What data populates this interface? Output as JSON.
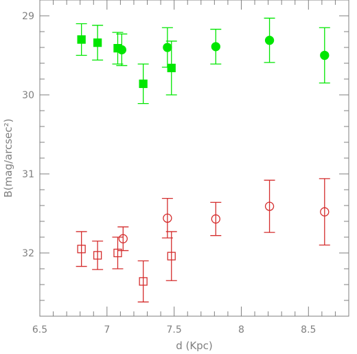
{
  "chart_data": {
    "type": "scatter",
    "title": "",
    "xlabel": "d (Kpc)",
    "ylabel": "B(mag/arcsec²)",
    "xlim": [
      6.5,
      8.8
    ],
    "ylim": [
      32.8,
      28.8
    ],
    "y_inverted": true,
    "x_ticks": [
      6.5,
      7,
      7.5,
      8,
      8.5
    ],
    "x_tick_labels": [
      "6.5",
      "7",
      "7.5",
      "8",
      "8.5"
    ],
    "y_ticks": [
      29,
      30,
      31,
      32
    ],
    "y_tick_labels": [
      "29",
      "30",
      "31",
      "32"
    ],
    "grid": false,
    "axis_color": "#7f7f7f",
    "series": [
      {
        "marker": "square",
        "filled": true,
        "color": "#00e600",
        "points": [
          {
            "x": 6.81,
            "y": 29.3,
            "err": 0.2
          },
          {
            "x": 6.93,
            "y": 29.34,
            "err": 0.22
          },
          {
            "x": 7.08,
            "y": 29.41,
            "err": 0.2
          },
          {
            "x": 7.27,
            "y": 29.86,
            "err": 0.25
          },
          {
            "x": 7.48,
            "y": 29.66,
            "err": 0.34
          }
        ]
      },
      {
        "marker": "circle",
        "filled": true,
        "color": "#00e600",
        "points": [
          {
            "x": 7.11,
            "y": 29.43,
            "err": 0.2
          },
          {
            "x": 7.45,
            "y": 29.4,
            "err": 0.25
          },
          {
            "x": 7.81,
            "y": 29.39,
            "err": 0.22
          },
          {
            "x": 8.21,
            "y": 29.31,
            "err": 0.28
          },
          {
            "x": 8.62,
            "y": 29.5,
            "err": 0.35
          }
        ]
      },
      {
        "marker": "square",
        "filled": false,
        "color": "#d42c2c",
        "points": [
          {
            "x": 6.81,
            "y": 31.95,
            "err": 0.22
          },
          {
            "x": 6.93,
            "y": 32.03,
            "err": 0.18
          },
          {
            "x": 7.08,
            "y": 32.0,
            "err": 0.2
          },
          {
            "x": 7.27,
            "y": 32.36,
            "err": 0.26
          },
          {
            "x": 7.48,
            "y": 32.04,
            "err": 0.31
          }
        ]
      },
      {
        "marker": "circle",
        "filled": false,
        "color": "#d42c2c",
        "points": [
          {
            "x": 7.12,
            "y": 31.82,
            "err": 0.15
          },
          {
            "x": 7.45,
            "y": 31.56,
            "err": 0.25
          },
          {
            "x": 7.81,
            "y": 31.57,
            "err": 0.21
          },
          {
            "x": 8.21,
            "y": 31.41,
            "err": 0.33
          },
          {
            "x": 8.62,
            "y": 31.48,
            "err": 0.42
          }
        ]
      }
    ]
  }
}
